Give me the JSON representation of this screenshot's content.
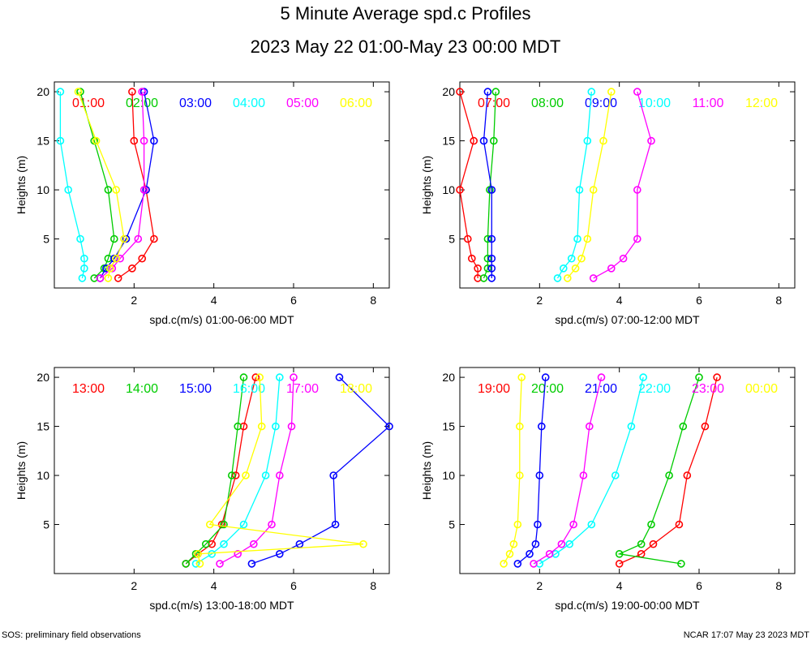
{
  "header": {
    "title": "5 Minute Average spd.c Profiles",
    "subtitle": "2023 May 22 01:00-May 23 00:00 MDT"
  },
  "footer": {
    "left": "SOS: preliminary field observations",
    "right": "NCAR 17:07 May 23 2023 MDT"
  },
  "colors": [
    "#ff0000",
    "#00cc00",
    "#0000ff",
    "#00ffff",
    "#ff00ff",
    "#ffff00"
  ],
  "chart_data": [
    {
      "type": "line",
      "xlabel": "spd.c(m/s) 01:00-06:00 MDT",
      "ylabel": "Heights (m)",
      "xlim": [
        0,
        8.4
      ],
      "ylim": [
        0,
        21
      ],
      "xticks": [
        2,
        4,
        6,
        8
      ],
      "yticks": [
        5,
        10,
        15,
        20
      ],
      "heights": [
        1,
        2,
        3,
        5,
        10,
        15,
        20
      ],
      "series": [
        {
          "name": "01:00",
          "values": [
            1.6,
            1.95,
            2.2,
            2.5,
            2.3,
            2.0,
            1.95
          ]
        },
        {
          "name": "02:00",
          "values": [
            1.0,
            1.25,
            1.35,
            1.5,
            1.35,
            1.0,
            0.65
          ]
        },
        {
          "name": "03:00",
          "values": [
            1.15,
            1.3,
            1.5,
            1.8,
            2.3,
            2.5,
            2.25
          ]
        },
        {
          "name": "04:00",
          "values": [
            0.7,
            0.75,
            0.75,
            0.65,
            0.35,
            0.15,
            0.15
          ]
        },
        {
          "name": "05:00",
          "values": [
            1.15,
            1.45,
            1.65,
            2.1,
            2.25,
            2.25,
            2.2
          ]
        },
        {
          "name": "06:00",
          "values": [
            1.35,
            1.4,
            1.55,
            1.75,
            1.55,
            1.05,
            0.6
          ]
        }
      ]
    },
    {
      "type": "line",
      "xlabel": "spd.c(m/s) 07:00-12:00 MDT",
      "ylabel": "Heights (m)",
      "xlim": [
        0,
        8.4
      ],
      "ylim": [
        0,
        21
      ],
      "xticks": [
        2,
        4,
        6,
        8
      ],
      "yticks": [
        5,
        10,
        15,
        20
      ],
      "heights": [
        1,
        2,
        3,
        5,
        10,
        15,
        20
      ],
      "series": [
        {
          "name": "07:00",
          "values": [
            0.45,
            0.45,
            0.3,
            0.2,
            0.0,
            0.35,
            0.0
          ]
        },
        {
          "name": "08:00",
          "values": [
            0.6,
            0.7,
            0.7,
            0.7,
            0.75,
            0.85,
            0.9
          ]
        },
        {
          "name": "09:00",
          "values": [
            0.8,
            0.8,
            0.8,
            0.8,
            0.8,
            0.6,
            0.7
          ]
        },
        {
          "name": "10:00",
          "values": [
            2.45,
            2.6,
            2.8,
            2.95,
            3.0,
            3.2,
            3.3
          ]
        },
        {
          "name": "11:00",
          "values": [
            3.35,
            3.8,
            4.1,
            4.45,
            4.45,
            4.8,
            4.45
          ]
        },
        {
          "name": "12:00",
          "values": [
            2.7,
            2.9,
            3.05,
            3.2,
            3.35,
            3.6,
            3.8
          ]
        }
      ]
    },
    {
      "type": "line",
      "xlabel": "spd.c(m/s) 13:00-18:00 MDT",
      "ylabel": "Heights (m)",
      "xlim": [
        0,
        8.4
      ],
      "ylim": [
        0,
        21
      ],
      "xticks": [
        2,
        4,
        6,
        8
      ],
      "yticks": [
        5,
        10,
        15,
        20
      ],
      "heights": [
        1,
        2,
        3,
        5,
        10,
        15,
        20
      ],
      "series": [
        {
          "name": "13:00",
          "values": [
            3.3,
            3.6,
            3.95,
            4.2,
            4.55,
            4.75,
            5.05
          ]
        },
        {
          "name": "14:00",
          "values": [
            3.3,
            3.55,
            3.8,
            4.25,
            4.45,
            4.6,
            4.75
          ]
        },
        {
          "name": "15:00",
          "values": [
            4.95,
            5.65,
            6.15,
            7.05,
            7.0,
            8.4,
            7.15
          ]
        },
        {
          "name": "16:00",
          "values": [
            3.55,
            3.95,
            4.25,
            4.75,
            5.3,
            5.55,
            5.65
          ]
        },
        {
          "name": "17:00",
          "values": [
            4.15,
            4.6,
            5.0,
            5.45,
            5.65,
            5.95,
            6.0
          ]
        },
        {
          "name": "18:00",
          "values": [
            3.65,
            3.6,
            7.75,
            3.9,
            4.8,
            5.2,
            5.15
          ]
        }
      ]
    },
    {
      "type": "line",
      "xlabel": "spd.c(m/s) 19:00-00:00 MDT",
      "ylabel": "Heights (m)",
      "xlim": [
        0,
        8.4
      ],
      "ylim": [
        0,
        21
      ],
      "xticks": [
        2,
        4,
        6,
        8
      ],
      "yticks": [
        5,
        10,
        15,
        20
      ],
      "heights": [
        1,
        2,
        3,
        5,
        10,
        15,
        20
      ],
      "series": [
        {
          "name": "19:00",
          "values": [
            4.0,
            4.55,
            4.85,
            5.5,
            5.7,
            6.15,
            6.45
          ]
        },
        {
          "name": "20:00",
          "values": [
            5.55,
            4.0,
            4.55,
            4.8,
            5.25,
            5.6,
            6.0
          ]
        },
        {
          "name": "21:00",
          "values": [
            1.45,
            1.75,
            1.9,
            1.95,
            2.0,
            2.05,
            2.15
          ]
        },
        {
          "name": "22:00",
          "values": [
            2.0,
            2.4,
            2.75,
            3.3,
            3.9,
            4.3,
            4.6
          ]
        },
        {
          "name": "23:00",
          "values": [
            1.85,
            2.25,
            2.55,
            2.85,
            3.1,
            3.25,
            3.55
          ]
        },
        {
          "name": "00:00",
          "values": [
            1.1,
            1.25,
            1.35,
            1.45,
            1.5,
            1.5,
            1.55
          ]
        }
      ]
    }
  ]
}
